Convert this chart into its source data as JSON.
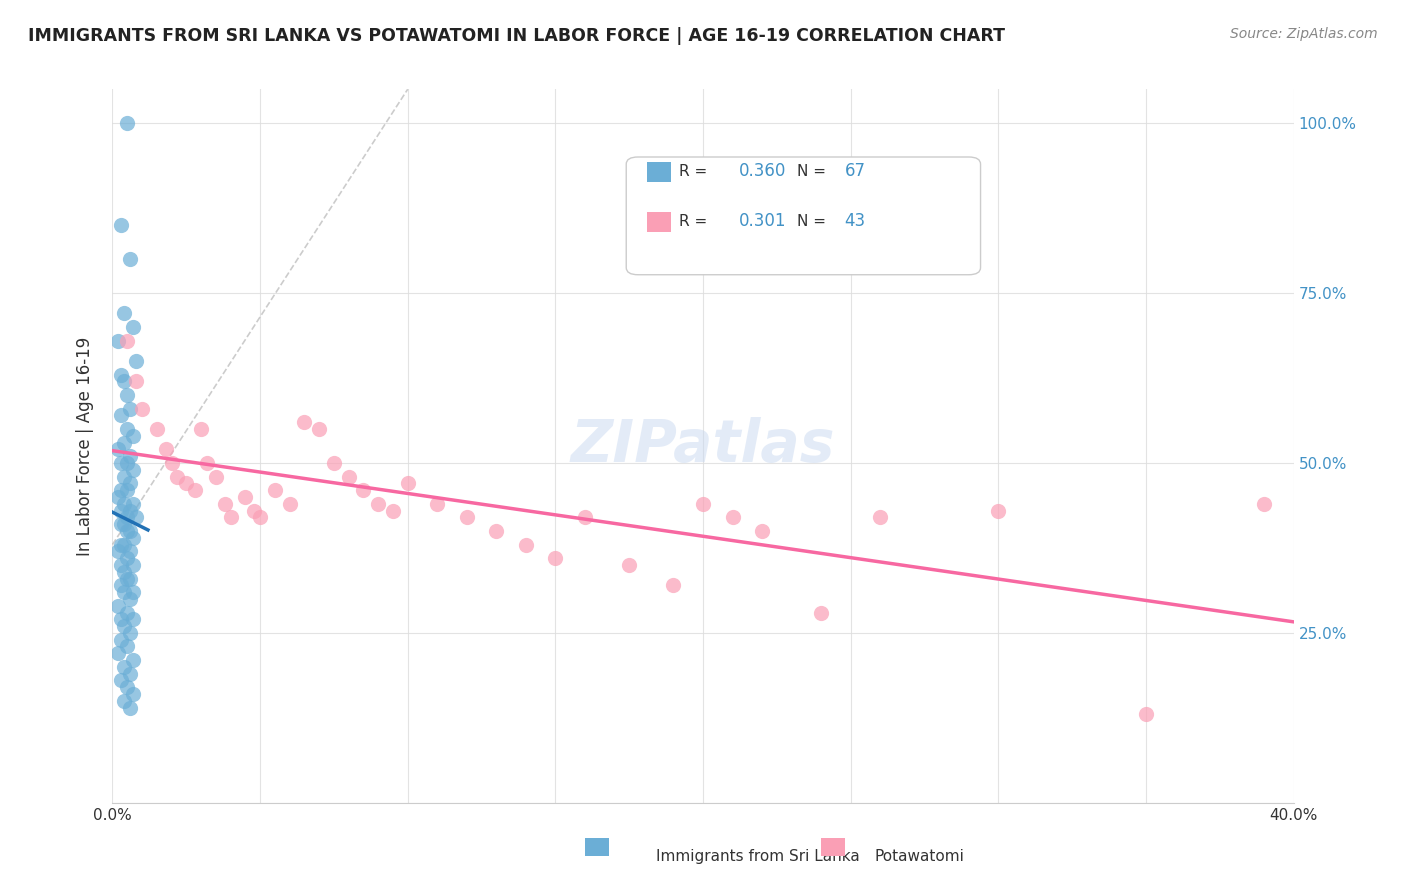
{
  "title": "IMMIGRANTS FROM SRI LANKA VS POTAWATOMI IN LABOR FORCE | AGE 16-19 CORRELATION CHART",
  "source": "Source: ZipAtlas.com",
  "ylabel": "In Labor Force | Age 16-19",
  "xlim": [
    0.0,
    0.4
  ],
  "ylim": [
    0.0,
    1.05
  ],
  "xticks": [
    0.0,
    0.05,
    0.1,
    0.15,
    0.2,
    0.25,
    0.3,
    0.35,
    0.4
  ],
  "yticks": [
    0.0,
    0.25,
    0.5,
    0.75,
    1.0
  ],
  "yticklabels_right": [
    "",
    "25.0%",
    "50.0%",
    "75.0%",
    "100.0%"
  ],
  "legend1_R": "0.360",
  "legend1_N": "67",
  "legend2_R": "0.301",
  "legend2_N": "43",
  "color_blue": "#6baed6",
  "color_pink": "#fa9fb5",
  "color_blue_line": "#2171b5",
  "color_pink_line": "#f768a1",
  "color_label_blue": "#4292c6",
  "sri_lanka_x": [
    0.005,
    0.003,
    0.006,
    0.004,
    0.007,
    0.002,
    0.008,
    0.003,
    0.004,
    0.005,
    0.006,
    0.003,
    0.005,
    0.007,
    0.004,
    0.002,
    0.006,
    0.005,
    0.003,
    0.007,
    0.004,
    0.006,
    0.003,
    0.005,
    0.002,
    0.007,
    0.004,
    0.006,
    0.003,
    0.005,
    0.008,
    0.004,
    0.003,
    0.006,
    0.005,
    0.007,
    0.003,
    0.004,
    0.006,
    0.002,
    0.005,
    0.007,
    0.003,
    0.004,
    0.006,
    0.005,
    0.003,
    0.007,
    0.004,
    0.006,
    0.002,
    0.005,
    0.003,
    0.007,
    0.004,
    0.006,
    0.003,
    0.005,
    0.002,
    0.007,
    0.004,
    0.006,
    0.003,
    0.005,
    0.007,
    0.004,
    0.006
  ],
  "sri_lanka_y": [
    1.0,
    0.85,
    0.8,
    0.72,
    0.7,
    0.68,
    0.65,
    0.63,
    0.62,
    0.6,
    0.58,
    0.57,
    0.55,
    0.54,
    0.53,
    0.52,
    0.51,
    0.5,
    0.5,
    0.49,
    0.48,
    0.47,
    0.46,
    0.46,
    0.45,
    0.44,
    0.44,
    0.43,
    0.43,
    0.42,
    0.42,
    0.41,
    0.41,
    0.4,
    0.4,
    0.39,
    0.38,
    0.38,
    0.37,
    0.37,
    0.36,
    0.35,
    0.35,
    0.34,
    0.33,
    0.33,
    0.32,
    0.31,
    0.31,
    0.3,
    0.29,
    0.28,
    0.27,
    0.27,
    0.26,
    0.25,
    0.24,
    0.23,
    0.22,
    0.21,
    0.2,
    0.19,
    0.18,
    0.17,
    0.16,
    0.15,
    0.14
  ],
  "potawatomi_x": [
    0.005,
    0.008,
    0.01,
    0.015,
    0.018,
    0.02,
    0.022,
    0.025,
    0.028,
    0.03,
    0.032,
    0.035,
    0.038,
    0.04,
    0.045,
    0.048,
    0.05,
    0.055,
    0.06,
    0.065,
    0.07,
    0.075,
    0.08,
    0.085,
    0.09,
    0.095,
    0.1,
    0.11,
    0.12,
    0.13,
    0.14,
    0.15,
    0.16,
    0.175,
    0.19,
    0.2,
    0.21,
    0.22,
    0.24,
    0.26,
    0.3,
    0.35,
    0.39
  ],
  "potawatomi_y": [
    0.68,
    0.62,
    0.58,
    0.55,
    0.52,
    0.5,
    0.48,
    0.47,
    0.46,
    0.55,
    0.5,
    0.48,
    0.44,
    0.42,
    0.45,
    0.43,
    0.42,
    0.46,
    0.44,
    0.56,
    0.55,
    0.5,
    0.48,
    0.46,
    0.44,
    0.43,
    0.47,
    0.44,
    0.42,
    0.4,
    0.38,
    0.36,
    0.42,
    0.35,
    0.32,
    0.44,
    0.42,
    0.4,
    0.28,
    0.42,
    0.43,
    0.13,
    0.44
  ],
  "watermark": "ZIPatlas",
  "background_color": "#ffffff",
  "grid_color": "#dddddd"
}
